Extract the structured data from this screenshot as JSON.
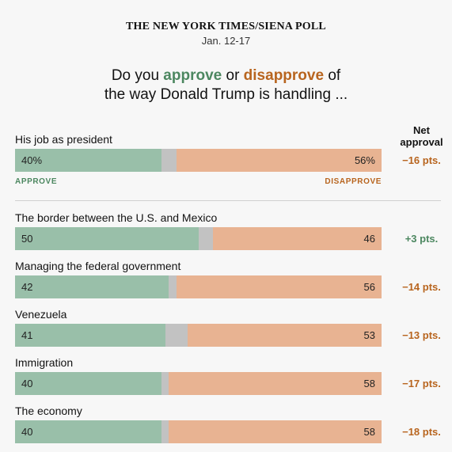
{
  "header": {
    "source": "THE NEW YORK TIMES/SIENA POLL",
    "dates": "Jan. 12-17"
  },
  "question": {
    "prefix": "Do you ",
    "approve_word": "approve",
    "middle": " or ",
    "disapprove_word": "disapprove",
    "suffix": " of",
    "line2": "the way Donald Trump is handling ..."
  },
  "net_header": {
    "line1": "Net",
    "line2": "approval"
  },
  "legend": {
    "approve": "APPROVE",
    "disapprove": "DISAPPROVE"
  },
  "colors": {
    "approve": "#99bfa9",
    "other": "#c2c2c2",
    "disapprove": "#e8b392",
    "approve_text": "#4c8760",
    "disapprove_text": "#b8651f"
  },
  "chart_data": {
    "type": "bar",
    "orientation": "horizontal-stacked",
    "categories": [
      "His job as president",
      "The border between the U.S. and Mexico",
      "Managing the federal government",
      "Venezuela",
      "Immigration",
      "The economy"
    ],
    "series": [
      {
        "name": "APPROVE",
        "values": [
          40,
          50,
          42,
          41,
          40,
          40
        ]
      },
      {
        "values": [
          4,
          4,
          2,
          6,
          2,
          2
        ]
      },
      {
        "name": "DISAPPROVE",
        "values": [
          56,
          46,
          56,
          53,
          58,
          58
        ]
      }
    ],
    "approve_labels": [
      "40%",
      "50",
      "42",
      "41",
      "40",
      "40"
    ],
    "disapprove_labels": [
      "56%",
      "46",
      "56",
      "53",
      "58",
      "58"
    ],
    "net_labels": [
      "−16 pts.",
      "+3 pts.",
      "−14 pts.",
      "−13 pts.",
      "−17 pts.",
      "−18 pts."
    ],
    "net_values": [
      -16,
      3,
      -14,
      -13,
      -17,
      -18
    ],
    "xlim": [
      0,
      100
    ]
  }
}
